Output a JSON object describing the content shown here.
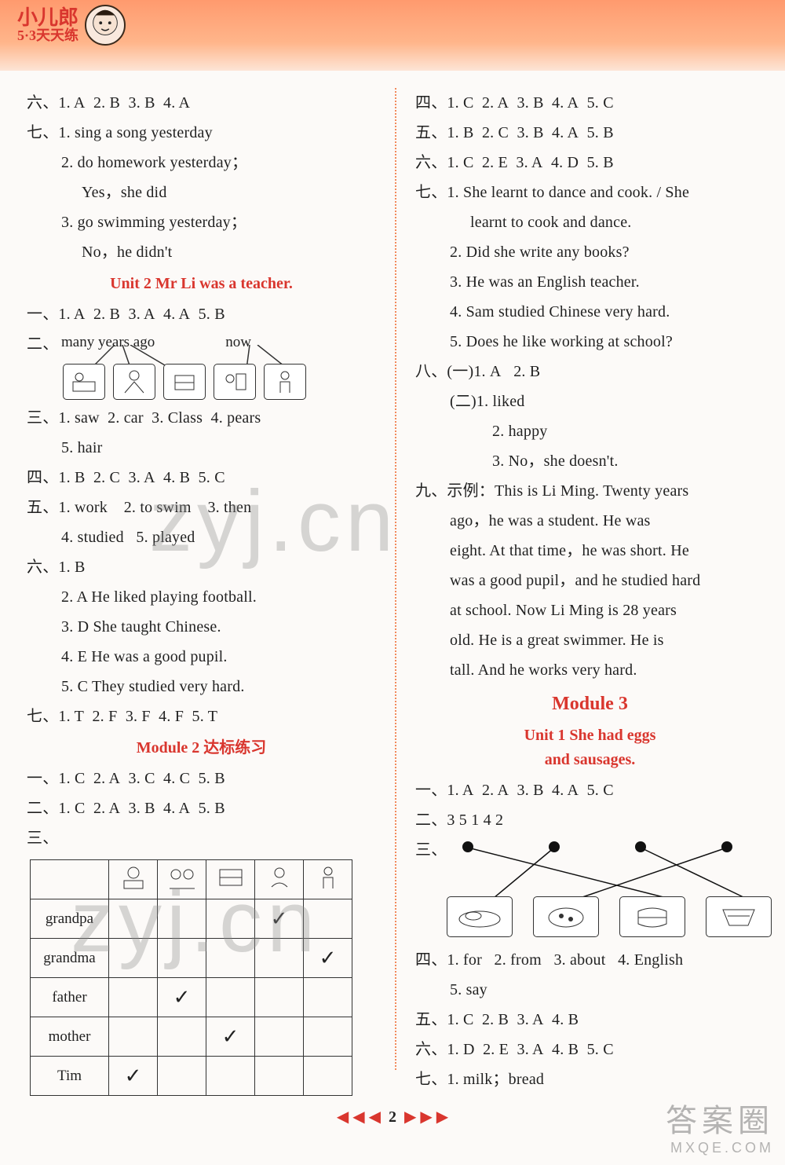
{
  "header": {
    "brand_top": "小儿郎",
    "brand_sub": "5·3天天练"
  },
  "left": {
    "s6": {
      "label": "六、",
      "a1": "1. A",
      "a2": "2. B",
      "a3": "3. B",
      "a4": "4. A"
    },
    "s7": {
      "label": "七、",
      "a1": "1. sing a song yesterday",
      "a2": "2. do homework yesterday；",
      "a2b": "Yes，she did",
      "a3": "3. go swimming yesterday；",
      "a3b": "No，he didn't"
    },
    "u2": {
      "title": "Unit 2   Mr Li was a teacher."
    },
    "e1": {
      "label": "一、",
      "a1": "1. A",
      "a2": "2. B",
      "a3": "3. A",
      "a4": "4. A",
      "a5": "5. B"
    },
    "e2": {
      "label": "二、",
      "lab1": "many years ago",
      "lab2": "now"
    },
    "e3": {
      "label": "三、",
      "a1": "1. saw",
      "a2": "2. car",
      "a3": "3. Class",
      "a4": "4. pears",
      "a5": "5. hair"
    },
    "e4": {
      "label": "四、",
      "a1": "1. B",
      "a2": "2. C",
      "a3": "3. A",
      "a4": "4. B",
      "a5": "5. C"
    },
    "e5": {
      "label": "五、",
      "a1": "1. work",
      "a2": "2. to swim",
      "a3": "3. then",
      "a4": "4. studied",
      "a5": "5. played"
    },
    "e6": {
      "label": "六、",
      "a1": "1. B",
      "a2": "2. A   He liked playing football.",
      "a3": "3. D   She taught Chinese.",
      "a4": "4. E   He was a good pupil.",
      "a5": "5. C   They studied very hard."
    },
    "e7": {
      "label": "七、",
      "a1": "1. T",
      "a2": "2. F",
      "a3": "3. F",
      "a4": "4. F",
      "a5": "5. T"
    },
    "m2": {
      "title": "Module 2 达标练习"
    },
    "m2e1": {
      "label": "一、",
      "a1": "1. C",
      "a2": "2. A",
      "a3": "3. C",
      "a4": "4. C",
      "a5": "5. B"
    },
    "m2e2": {
      "label": "二、",
      "a1": "1. C",
      "a2": "2. A",
      "a3": "3. B",
      "a4": "4. A",
      "a5": "5. B"
    },
    "m2e3": {
      "label": "三、",
      "rows": [
        "grandpa",
        "grandma",
        "father",
        "mother",
        "Tim"
      ],
      "grid": [
        [
          "",
          "",
          "",
          "✓",
          ""
        ],
        [
          "",
          "",
          "",
          "",
          "✓"
        ],
        [
          "",
          "✓",
          "",
          "",
          ""
        ],
        [
          "",
          "",
          "✓",
          "",
          ""
        ],
        [
          "✓",
          "",
          "",
          "",
          ""
        ]
      ]
    }
  },
  "right": {
    "e4": {
      "label": "四、",
      "a1": "1. C",
      "a2": "2. A",
      "a3": "3. B",
      "a4": "4. A",
      "a5": "5. C"
    },
    "e5": {
      "label": "五、",
      "a1": "1. B",
      "a2": "2. C",
      "a3": "3. B",
      "a4": "4. A",
      "a5": "5. B"
    },
    "e6": {
      "label": "六、",
      "a1": "1. C",
      "a2": "2. E",
      "a3": "3. A",
      "a4": "4. D",
      "a5": "5. B"
    },
    "e7": {
      "label": "七、",
      "a1": "1. She learnt to dance and cook. / She",
      "a1b": "learnt to cook and dance.",
      "a2": "2. Did she write any books?",
      "a3": "3. He was an English teacher.",
      "a4": "4. Sam studied Chinese very hard.",
      "a5": "5. Does he like working at school?"
    },
    "e8": {
      "label": "八、",
      "p1a": "(一)1. A",
      "p1b": "2. B",
      "p2a": "(二)1. liked",
      "p2b": "2. happy",
      "p2c": "3. No，she doesn't."
    },
    "e9": {
      "label": "九、",
      "lead": "示例：",
      "t1": "This is Li Ming. Twenty years",
      "t2": "ago，he  was  a  student. He  was",
      "t3": "eight. At that time，he was short. He",
      "t4": "was a good pupil，and he studied hard",
      "t5": "at school. Now Li Ming is 28 years",
      "t6": "old. He  is  a  great  swimmer. He  is",
      "t7": "tall. And he works very hard."
    },
    "m3": {
      "title": "Module 3",
      "u1a": "Unit 1   She had eggs",
      "u1b": "and sausages."
    },
    "m3e1": {
      "label": "一、",
      "a1": "1. A",
      "a2": "2. A",
      "a3": "3. B",
      "a4": "4. A",
      "a5": "5. C"
    },
    "m3e2": {
      "label": "二、",
      "seq": "3  5  1  4  2"
    },
    "m3e3": {
      "label": "三、"
    },
    "m3e4": {
      "label": "四、",
      "a1": "1. for",
      "a2": "2. from",
      "a3": "3. about",
      "a4": "4. English",
      "a5": "5. say"
    },
    "m3e5": {
      "label": "五、",
      "a1": "1. C",
      "a2": "2. B",
      "a3": "3. A",
      "a4": "4. B"
    },
    "m3e6": {
      "label": "六、",
      "a1": "1. D",
      "a2": "2. E",
      "a3": "3. A",
      "a4": "4. B",
      "a5": "5. C"
    },
    "m3e7": {
      "label": "七、",
      "a1": "1. milk；bread"
    }
  },
  "pager": {
    "left": "◀ ◀ ◀",
    "num": "2",
    "right": "▶ ▶ ▶"
  },
  "watermark": {
    "text": "zyj.cn",
    "footer_big": "答案圈",
    "footer_small": "MXQE.COM"
  }
}
